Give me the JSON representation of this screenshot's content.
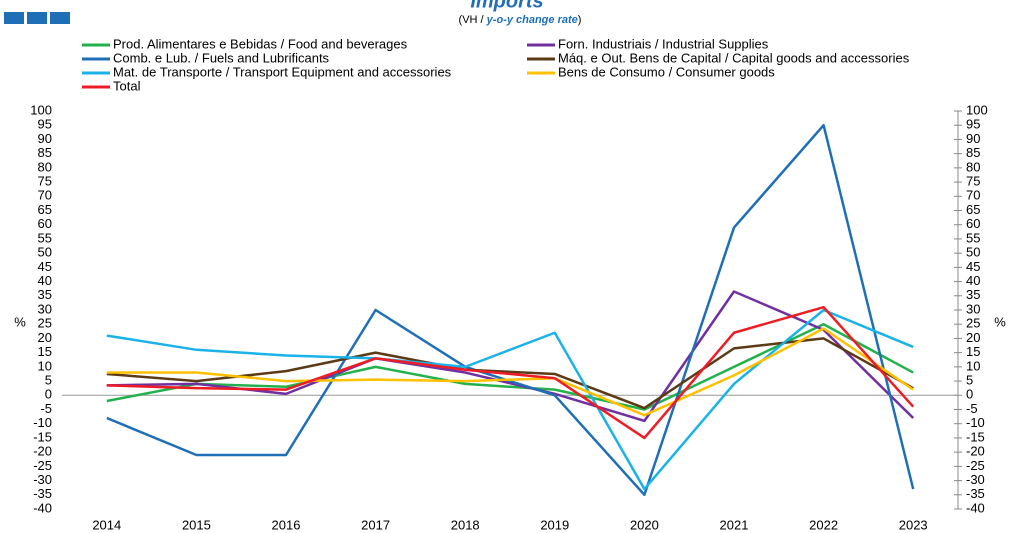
{
  "chart_data": {
    "type": "line",
    "title": "Imports",
    "subtitle": [
      "(VH / ",
      "y-o-y change rate",
      ")"
    ],
    "ylabel": "%",
    "categories": [
      "2014",
      "2015",
      "2016",
      "2017",
      "2018",
      "2019",
      "2020",
      "2021",
      "2022",
      "2023"
    ],
    "series": [
      {
        "name": "Prod. Alimentares e Bebidas / Food and beverages",
        "color": "#22b14c",
        "values": [
          -2,
          4,
          3,
          10,
          4,
          2,
          -5,
          10,
          25,
          8
        ]
      },
      {
        "name": "Forn. Industriais / Industrial Supplies",
        "color": "#7030a0",
        "values": [
          3.5,
          4,
          0.5,
          13,
          8,
          0.5,
          -9,
          36.5,
          23,
          -8
        ]
      },
      {
        "name": "Comb. e Lub. /  Fuels and Lubrificants",
        "color": "#1f6fb7",
        "values": [
          -8,
          -21,
          -21,
          30,
          10,
          0,
          -35,
          59,
          95,
          -33
        ]
      },
      {
        "name": "Máq. e Out. Bens de Capital / Capital goods and accessories",
        "color": "#5c3a16",
        "values": [
          7.5,
          5,
          8.5,
          15,
          9,
          7.5,
          -4.5,
          16.5,
          20,
          2.5
        ]
      },
      {
        "name": "Mat. de Transporte / Transport Equipment and accessories",
        "color": "#1ab2e8",
        "values": [
          21,
          16,
          14,
          13,
          10,
          22,
          -33,
          4,
          30,
          17
        ]
      },
      {
        "name": "Bens de Consumo / Consumer goods",
        "color": "#ffc000",
        "values": [
          8,
          8,
          5,
          5.5,
          5,
          6,
          -7,
          7,
          23.5,
          2
        ]
      },
      {
        "name": "Total",
        "color": "#ee1c25",
        "values": [
          3.5,
          2.5,
          2,
          13,
          9,
          6,
          -15,
          22,
          31,
          -4
        ]
      }
    ],
    "ylim": [
      -40,
      100
    ],
    "yticks": [
      -40,
      -35,
      -30,
      -25,
      -20,
      -15,
      -10,
      -5,
      0,
      5,
      10,
      15,
      20,
      25,
      30,
      35,
      40,
      45,
      50,
      55,
      60,
      65,
      70,
      75,
      80,
      85,
      90,
      95,
      100
    ]
  }
}
